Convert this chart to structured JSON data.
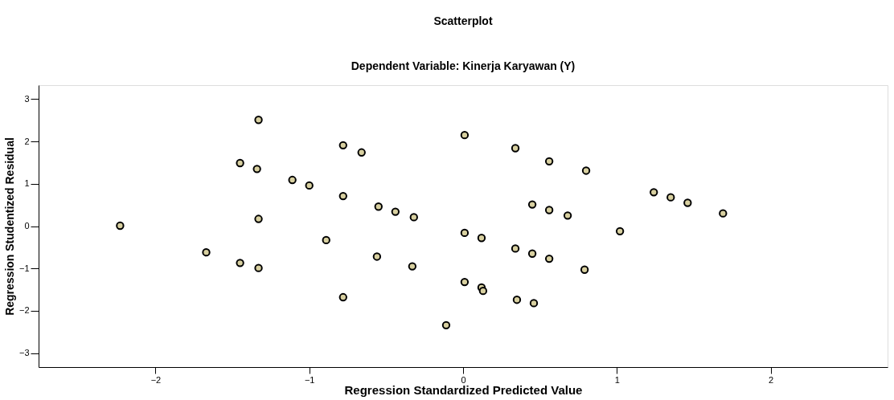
{
  "chart_data": {
    "type": "scatter",
    "title": "Scatterplot",
    "subtitle": "Dependent Variable: Kinerja Karyawan (Y)",
    "xlabel": "Regression Standardized Predicted Value",
    "ylabel": "Regression Studentized Residual",
    "x": [
      -1.33,
      -1.45,
      -1.34,
      -1.11,
      -2.23,
      -1.33,
      -1.67,
      -1.45,
      -1.33,
      -1.0,
      -0.78,
      -0.66,
      -0.78,
      -0.55,
      -0.44,
      -0.32,
      -0.89,
      -0.56,
      -0.33,
      -0.78,
      0.01,
      0.34,
      0.56,
      0.45,
      0.56,
      0.01,
      0.12,
      0.34,
      0.45,
      0.56,
      0.01,
      0.12,
      0.13,
      0.35,
      0.46,
      -0.11,
      0.8,
      0.68,
      1.02,
      0.79,
      1.24,
      1.35,
      1.46,
      1.69
    ],
    "series": [
      {
        "color": "#d8d0a0",
        "values": [
          2.51,
          1.49,
          1.35,
          1.09,
          0.01,
          0.17,
          -0.62,
          -0.87,
          -0.99,
          0.96,
          1.91,
          1.74,
          0.71,
          0.46,
          0.34,
          0.21,
          -0.33,
          -0.72,
          -0.95,
          -1.68,
          2.15,
          1.84,
          1.53,
          0.51,
          0.38,
          -0.16,
          -0.28,
          -0.53,
          -0.65,
          -0.77,
          -1.32,
          -1.45,
          -1.53,
          -1.74,
          -1.82,
          -2.34,
          1.31,
          0.25,
          -0.12,
          -1.03,
          0.8,
          0.68,
          0.55,
          0.3
        ]
      }
    ],
    "xlim": [
      -2.76,
      2.76
    ],
    "ylim": [
      -3.33,
      3.33
    ],
    "xticks": [
      -2,
      -1,
      0,
      1,
      2
    ],
    "yticks": [
      -3,
      -2,
      -1,
      0,
      1,
      2,
      3
    ],
    "grid": false,
    "marker": "circle"
  }
}
